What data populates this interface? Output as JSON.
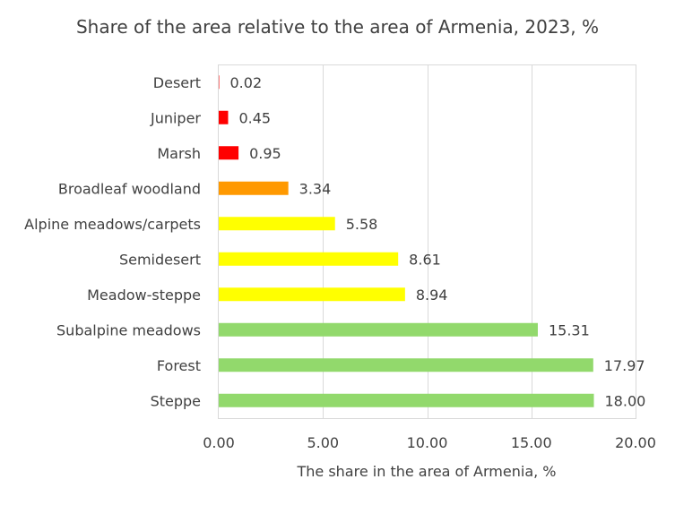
{
  "chart_data": {
    "type": "bar",
    "orientation": "horizontal",
    "title": "Share of the area relative to the area of Armenia, 2023, %",
    "xlabel": "The share in the area of Armenia, %",
    "ylabel": "",
    "xlim": [
      0,
      20
    ],
    "x_ticks": [
      "0.00",
      "5.00",
      "10.00",
      "15.00",
      "20.00"
    ],
    "grid": true,
    "categories": [
      "Desert",
      "Juniper",
      "Marsh",
      "Broadleaf woodland",
      "Alpine meadows/carpets",
      "Semidesert",
      "Meadow-steppe",
      "Subalpine meadows",
      "Forest",
      "Steppe"
    ],
    "values": [
      0.02,
      0.45,
      0.95,
      3.34,
      5.58,
      8.61,
      8.94,
      15.31,
      17.97,
      18.0
    ],
    "value_labels": [
      "0.02",
      "0.45",
      "0.95",
      "3.34",
      "5.58",
      "8.61",
      "8.94",
      "15.31",
      "17.97",
      "18.00"
    ],
    "bar_colors": [
      "#ff0000",
      "#ff0000",
      "#ff0000",
      "#ff9900",
      "#ffff00",
      "#ffff00",
      "#ffff00",
      "#92d96c",
      "#92d96c",
      "#92d96c"
    ]
  }
}
